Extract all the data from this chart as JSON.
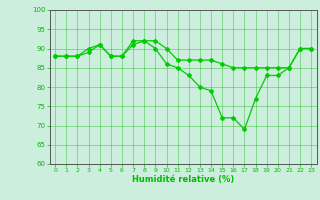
{
  "line1_x": [
    0,
    1,
    2,
    3,
    4,
    5,
    6,
    7,
    8,
    9,
    10,
    11,
    12,
    13,
    14,
    15,
    16,
    17,
    18,
    19,
    20,
    21,
    22,
    23
  ],
  "line1_y": [
    88,
    88,
    88,
    89,
    91,
    88,
    88,
    92,
    92,
    92,
    90,
    87,
    87,
    87,
    87,
    86,
    85,
    85,
    85,
    85,
    85,
    85,
    90,
    90
  ],
  "line2_x": [
    0,
    1,
    2,
    3,
    4,
    5,
    6,
    7,
    8,
    9,
    10,
    11,
    12,
    13,
    14,
    15,
    16,
    17,
    18,
    19,
    20,
    21,
    22,
    23
  ],
  "line2_y": [
    88,
    88,
    88,
    90,
    91,
    88,
    88,
    91,
    92,
    90,
    86,
    85,
    83,
    80,
    79,
    72,
    72,
    69,
    77,
    83,
    83,
    85,
    90,
    90
  ],
  "line_color": "#00cc00",
  "bg_color": "#cceedd",
  "grid_color": "#33bb33",
  "axis_color": "#555555",
  "xlabel": "Humidité relative (%)",
  "xlabel_color": "#00bb00",
  "tick_color": "#00bb00",
  "xlim": [
    -0.5,
    23.5
  ],
  "ylim": [
    60,
    100
  ],
  "yticks": [
    60,
    65,
    70,
    75,
    80,
    85,
    90,
    95,
    100
  ],
  "xticks": [
    0,
    1,
    2,
    3,
    4,
    5,
    6,
    7,
    8,
    9,
    10,
    11,
    12,
    13,
    14,
    15,
    16,
    17,
    18,
    19,
    20,
    21,
    22,
    23
  ],
  "marker": "D",
  "marker_size": 2.0,
  "line_width": 0.9
}
